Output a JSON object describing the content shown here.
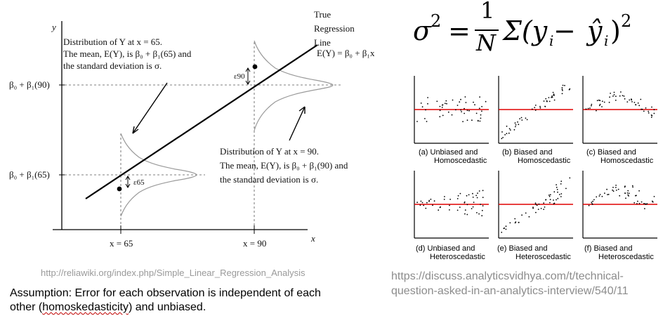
{
  "diagram": {
    "y_axis_label": "y",
    "x_axis_label": "x",
    "true_line_title": [
      "True",
      "Regression",
      "Line"
    ],
    "true_line_equation": "E(Y) = β₀ + β₁x",
    "y_tick_90": "β₀ + β₁(90)",
    "y_tick_65": "β₀ + β₁(65)",
    "x_tick_65": "x = 65",
    "x_tick_90": "x = 90",
    "eps_65": "ε65",
    "eps_90": "ε90",
    "annotation_65": [
      "Distribution of Y at x = 65.",
      "The mean, E(Y), is β₀ + β₁(65) and",
      "the standard deviation is σ."
    ],
    "annotation_90": [
      "Distribution of Y at x = 90.",
      "The mean, E(Y), is β₀ + β₁(90) and",
      "the standard deviation is σ."
    ]
  },
  "left_source_url": "http://reliawiki.org/index.php/Simple_Linear_Regression_Analysis",
  "assumption": {
    "line1": "Assumption: Error for each observation is independent of each",
    "line2_before": "other (",
    "line2_marked": "homoskedasticity",
    "line2_after": ") and unbiased."
  },
  "formula": "σ² = (1/N) Σ(yᵢ − ŷᵢ)²",
  "formula_parts": {
    "lhs": "σ",
    "lhs_sup": "2",
    "equals": "=",
    "frac_num": "1",
    "frac_den": "N",
    "sum": "Σ(y",
    "sub_i": "i",
    "minus": " − ",
    "yhat": "ŷ",
    "sub_i2": "i",
    "close": ")",
    "rhs_sup": "2"
  },
  "residual_plots": [
    {
      "caption1": "(a) Unbiased and",
      "caption2": "Homoscedastic"
    },
    {
      "caption1": "(b) Biased and",
      "caption2": "Homoscedastic"
    },
    {
      "caption1": "(c) Biased and",
      "caption2": "Homoscedastic"
    },
    {
      "caption1": "(d) Unbiased and",
      "caption2": "Heteroscedastic"
    },
    {
      "caption1": "(e) Biased and",
      "caption2": "Heteroscedastic"
    },
    {
      "caption1": "(f) Biased and",
      "caption2": "Heteroscedastic"
    }
  ],
  "right_source_url": [
    "https://discuss.analyticsvidhya.com/t/technical-",
    "question-asked-in-an-analytics-interview/540/11"
  ],
  "colors": {
    "zero_line": "#e00000",
    "axis": "#000000",
    "curve": "#9a9a9a",
    "url_gray": "#9a9a9a"
  }
}
